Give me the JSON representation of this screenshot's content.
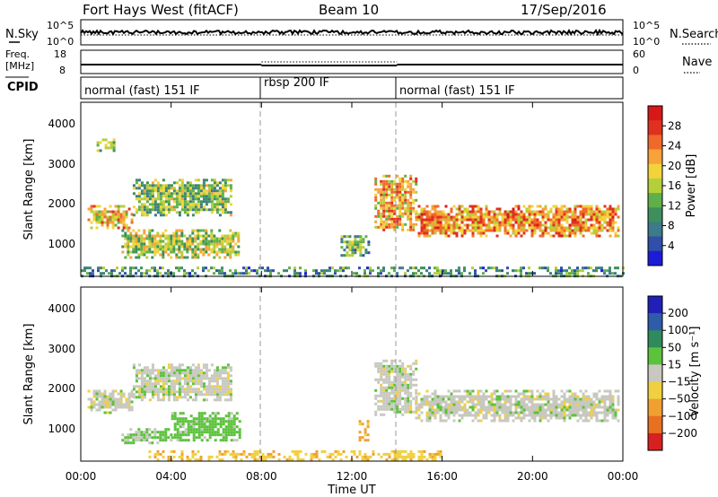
{
  "header": {
    "title": "Fort Hays West (fitACF)",
    "beam": "Beam 10",
    "date": "17/Sep/2016"
  },
  "noise_panel": {
    "left_label": "N.Sky",
    "left_ticks": [
      "10^5",
      "10^0"
    ],
    "right_label": "N.Search",
    "right_ticks": [
      "10^5",
      "10^0"
    ]
  },
  "freq_panel": {
    "left_label_line1": "Freq.",
    "left_label_line2": "[MHz]",
    "left_ticks": [
      "18",
      "8"
    ],
    "right_label": "Nave",
    "right_ticks": [
      "60",
      "0"
    ]
  },
  "cpid_panel": {
    "label": "CPID",
    "segments": [
      {
        "name": "normal (fast) 151 IF",
        "start": 0,
        "end": 8
      },
      {
        "name": "rbsp 200 IF",
        "start": 8,
        "end": 14
      },
      {
        "name": "normal (fast) 151 IF",
        "start": 14,
        "end": 24
      }
    ]
  },
  "x_axis": {
    "label": "Time UT",
    "ticks": [
      "00:00",
      "04:00",
      "08:00",
      "12:00",
      "16:00",
      "20:00",
      "00:00"
    ]
  },
  "power_panel": {
    "ylabel": "Slant Range [km]",
    "yticks": [
      "1000",
      "2000",
      "3000",
      "4000"
    ],
    "colorbar_label": "Power [dB]",
    "colorbar_ticks": [
      "4",
      "8",
      "12",
      "16",
      "20",
      "24",
      "28"
    ],
    "colors": [
      "#1c1cd8",
      "#2f4fa8",
      "#3d7a8a",
      "#3e8f5c",
      "#5fb04a",
      "#b5cf3a",
      "#f2d33a",
      "#f7a23a",
      "#ef6a2a",
      "#e03020",
      "#d81818"
    ]
  },
  "velocity_panel": {
    "ylabel": "Slant Range [km]",
    "yticks": [
      "1000",
      "2000",
      "3000",
      "4000"
    ],
    "colorbar_label": "Velocity [m s⁻¹]",
    "colorbar_ticks": [
      "200",
      "100",
      "50",
      "15",
      "−15",
      "−50",
      "−100",
      "−200"
    ],
    "colors": [
      "#2020b8",
      "#2e5ca8",
      "#2f8a5c",
      "#5cc23c",
      "#c8c8c0",
      "#f0d040",
      "#f0a030",
      "#e87020",
      "#d82020"
    ]
  },
  "chart_data": {
    "type": "heatmap",
    "xlabel": "Time UT",
    "ylabel": "Slant Range [km]",
    "xlim": [
      0,
      24
    ],
    "ylim": [
      180,
      4500
    ],
    "mode_changes_hours": [
      8,
      14
    ],
    "power_bands": [
      {
        "t": [
          0.3,
          2.3
        ],
        "r": [
          1350,
          1950
        ],
        "level": 18
      },
      {
        "t": [
          2.3,
          6.7
        ],
        "r": [
          1700,
          2600
        ],
        "level": 12
      },
      {
        "t": [
          1.8,
          7.0
        ],
        "r": [
          650,
          1350
        ],
        "level": 14
      },
      {
        "t": [
          0.7,
          1.5
        ],
        "r": [
          3300,
          3600
        ],
        "level": 12
      },
      {
        "t": [
          11.5,
          12.7
        ],
        "r": [
          700,
          1200
        ],
        "level": 10
      },
      {
        "t": [
          13.0,
          14.8
        ],
        "r": [
          1300,
          2700
        ],
        "level": 18
      },
      {
        "t": [
          14.8,
          23.8
        ],
        "r": [
          1150,
          1950
        ],
        "level": 20
      },
      {
        "t": [
          0.0,
          24.0
        ],
        "r": [
          200,
          420
        ],
        "level": 8
      }
    ],
    "velocity_bands": [
      {
        "t": [
          0.3,
          2.3
        ],
        "r": [
          1350,
          1950
        ],
        "velocity": 0
      },
      {
        "t": [
          2.3,
          6.7
        ],
        "r": [
          1700,
          2600
        ],
        "velocity": 0
      },
      {
        "t": [
          4.0,
          7.0
        ],
        "r": [
          700,
          1400
        ],
        "velocity": 30
      },
      {
        "t": [
          1.8,
          4.0
        ],
        "r": [
          650,
          1000
        ],
        "velocity": 20
      },
      {
        "t": [
          13.0,
          14.8
        ],
        "r": [
          1300,
          2700
        ],
        "velocity": 0
      },
      {
        "t": [
          14.8,
          23.8
        ],
        "r": [
          1150,
          1950
        ],
        "velocity": 0
      },
      {
        "t": [
          3.0,
          16.0
        ],
        "r": [
          200,
          450
        ],
        "velocity": -40
      },
      {
        "t": [
          12.3,
          12.7
        ],
        "r": [
          700,
          1200
        ],
        "velocity": -60
      }
    ]
  }
}
